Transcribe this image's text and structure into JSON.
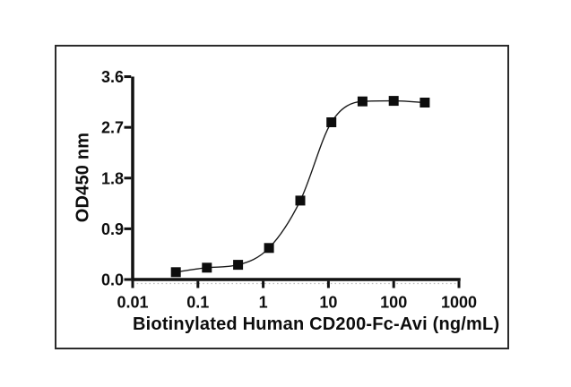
{
  "figure": {
    "background": "#ffffff",
    "border_color": "#2b2b2b"
  },
  "chart_data": {
    "type": "scatter",
    "title": "",
    "xlabel": "Biotinylated Human CD200-Fc-Avi (ng/mL)",
    "ylabel": "OD450 nm",
    "x_scale": "log10",
    "xlim": [
      0.01,
      1000
    ],
    "ylim": [
      0.0,
      3.6
    ],
    "x_ticks": [
      0.01,
      0.1,
      1,
      10,
      100,
      1000
    ],
    "x_tick_labels": [
      "0.01",
      "0.1",
      "1",
      "10",
      "100",
      "1000"
    ],
    "y_ticks": [
      0.0,
      0.9,
      1.8,
      2.7,
      3.6
    ],
    "y_tick_labels": [
      "0.0",
      "0.9",
      "1.8",
      "2.7",
      "3.6"
    ],
    "grid": false,
    "legend": false,
    "series": [
      {
        "marker": "filled-square",
        "fit": "4PL sigmoidal curve",
        "x": [
          0.046,
          0.137,
          0.412,
          1.23,
          3.7,
          11.1,
          33.3,
          100,
          300
        ],
        "y": [
          0.13,
          0.21,
          0.26,
          0.56,
          1.4,
          2.79,
          3.16,
          3.17,
          3.14
        ]
      }
    ],
    "style": {
      "axis_color": "#111111",
      "curve_color": "#1a1a1a",
      "marker_color": "#0d0d0d",
      "tick_label_color": "#0d0d0d",
      "baseline_dots_color": "#bdbdbd"
    }
  }
}
